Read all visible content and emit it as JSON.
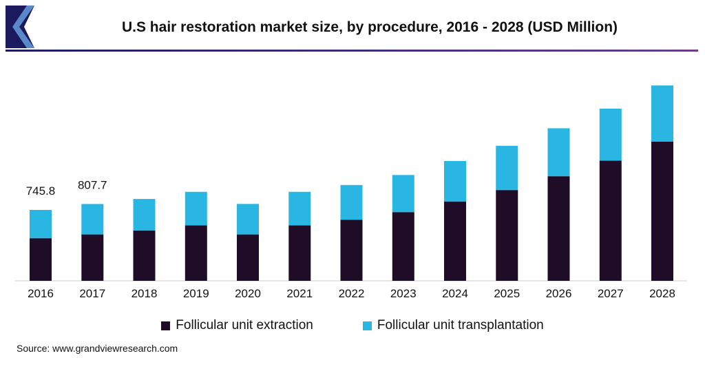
{
  "title": "U.S hair restoration market size, by procedure, 2016 - 2028 (USD Million)",
  "source": "Source: www.grandviewresearch.com",
  "colors": {
    "fue": "#1f0d28",
    "fut": "#29b6e2",
    "accent": "#1c1a5e"
  },
  "chart_data": {
    "type": "bar",
    "stacked": true,
    "categories": [
      "2016",
      "2017",
      "2018",
      "2019",
      "2020",
      "2021",
      "2022",
      "2023",
      "2024",
      "2025",
      "2026",
      "2027",
      "2028"
    ],
    "series": [
      {
        "name": "Follicular unit extraction",
        "values": [
          448,
          488,
          530,
          584,
          488,
          584,
          643,
          723,
          835,
          955,
          1100,
          1265,
          1465
        ]
      },
      {
        "name": "Follicular unit transplantation",
        "values": [
          298,
          320,
          331,
          352,
          321,
          352,
          365,
          390,
          425,
          466,
          505,
          547,
          590
        ]
      }
    ],
    "annotations": [
      {
        "category": "2016",
        "text": "745.8"
      },
      {
        "category": "2017",
        "text": "807.7"
      }
    ],
    "ylim": [
      0,
      2100
    ],
    "grid": false,
    "legend": "bottom"
  }
}
